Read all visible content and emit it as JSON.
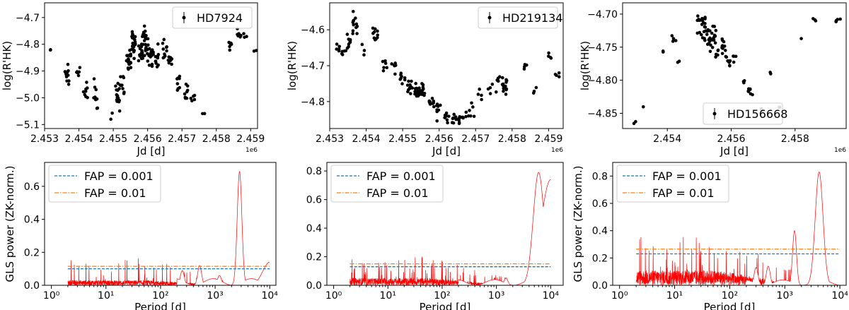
{
  "chart_data": [
    {
      "type": "scatter",
      "panel": "top-left",
      "legend": "HD7924",
      "legend_position": "top-right",
      "xlabel": "Jd [d]",
      "ylabel": "log(R'HK)",
      "x_offset_label": "1e6",
      "xlim": [
        2.453,
        2.4592
      ],
      "ylim": [
        -5.115,
        -4.645
      ],
      "xticks": [
        2.453,
        2.454,
        2.455,
        2.456,
        2.457,
        2.458,
        2.459
      ],
      "xtick_labels": [
        "2.453",
        "2.454",
        "2.455",
        "2.456",
        "2.457",
        "2.458",
        "2.459"
      ],
      "yticks": [
        -5.1,
        -5.0,
        -4.9,
        -4.8,
        -4.7
      ],
      "ytick_labels": [
        "−5.1",
        "−5.0",
        "−4.9",
        "−4.8",
        "−4.7"
      ],
      "clusters": [
        {
          "x": 2.45315,
          "y": -4.82,
          "spread": 0.01,
          "n": 2
        },
        {
          "x": 2.45365,
          "y": -4.91,
          "spread": 0.05,
          "n": 12
        },
        {
          "x": 2.454,
          "y": -4.9,
          "spread": 0.03,
          "n": 6
        },
        {
          "x": 2.4542,
          "y": -4.97,
          "spread": 0.05,
          "n": 8
        },
        {
          "x": 2.4545,
          "y": -4.99,
          "spread": 0.06,
          "n": 10
        },
        {
          "x": 2.4549,
          "y": -5.06,
          "spread": 0.03,
          "n": 2
        },
        {
          "x": 2.45512,
          "y": -4.99,
          "spread": 0.06,
          "n": 14
        },
        {
          "x": 2.45525,
          "y": -4.95,
          "spread": 0.04,
          "n": 10
        },
        {
          "x": 2.45545,
          "y": -4.86,
          "spread": 0.05,
          "n": 18
        },
        {
          "x": 2.4556,
          "y": -4.8,
          "spread": 0.06,
          "n": 22
        },
        {
          "x": 2.4558,
          "y": -4.83,
          "spread": 0.05,
          "n": 18
        },
        {
          "x": 2.45595,
          "y": -4.79,
          "spread": 0.06,
          "n": 22
        },
        {
          "x": 2.4561,
          "y": -4.84,
          "spread": 0.05,
          "n": 14
        },
        {
          "x": 2.4563,
          "y": -4.85,
          "spread": 0.04,
          "n": 10
        },
        {
          "x": 2.4565,
          "y": -4.82,
          "spread": 0.05,
          "n": 10
        },
        {
          "x": 2.45665,
          "y": -4.87,
          "spread": 0.04,
          "n": 8
        },
        {
          "x": 2.4569,
          "y": -4.95,
          "spread": 0.04,
          "n": 8
        },
        {
          "x": 2.4571,
          "y": -4.98,
          "spread": 0.04,
          "n": 8
        },
        {
          "x": 2.4573,
          "y": -5.0,
          "spread": 0.03,
          "n": 5
        },
        {
          "x": 2.4576,
          "y": -5.05,
          "spread": 0.02,
          "n": 2
        },
        {
          "x": 2.4584,
          "y": -4.8,
          "spread": 0.02,
          "n": 8
        },
        {
          "x": 2.45865,
          "y": -4.76,
          "spread": 0.02,
          "n": 6
        },
        {
          "x": 2.45885,
          "y": -4.77,
          "spread": 0.01,
          "n": 3
        },
        {
          "x": 2.4591,
          "y": -4.82,
          "spread": 0.01,
          "n": 2
        }
      ]
    },
    {
      "type": "scatter",
      "panel": "top-middle",
      "legend": "HD219134",
      "legend_position": "top-right",
      "xlabel": "Jd [d]",
      "ylabel": "log(R'HK)",
      "x_offset_label": "1e6",
      "xlim": [
        2.453,
        2.4594
      ],
      "ylim": [
        -4.875,
        -4.525
      ],
      "xticks": [
        2.453,
        2.454,
        2.455,
        2.456,
        2.457,
        2.458,
        2.459
      ],
      "xtick_labels": [
        "2.453",
        "2.454",
        "2.455",
        "2.456",
        "2.457",
        "2.458",
        "2.459"
      ],
      "yticks": [
        -4.8,
        -4.7,
        -4.6
      ],
      "ytick_labels": [
        "−4.8",
        "−4.7",
        "−4.6"
      ],
      "clusters": [
        {
          "x": 2.4532,
          "y": -4.655,
          "spread": 0.01,
          "n": 6
        },
        {
          "x": 2.4534,
          "y": -4.665,
          "spread": 0.01,
          "n": 5
        },
        {
          "x": 2.45355,
          "y": -4.63,
          "spread": 0.02,
          "n": 10
        },
        {
          "x": 2.4537,
          "y": -4.59,
          "spread": 0.04,
          "n": 12
        },
        {
          "x": 2.45395,
          "y": -4.66,
          "spread": 0.01,
          "n": 3
        },
        {
          "x": 2.45425,
          "y": -4.61,
          "spread": 0.02,
          "n": 10
        },
        {
          "x": 2.4545,
          "y": -4.69,
          "spread": 0.02,
          "n": 6
        },
        {
          "x": 2.45475,
          "y": -4.7,
          "spread": 0.02,
          "n": 6
        },
        {
          "x": 2.455,
          "y": -4.73,
          "spread": 0.02,
          "n": 8
        },
        {
          "x": 2.4552,
          "y": -4.76,
          "spread": 0.02,
          "n": 12
        },
        {
          "x": 2.4554,
          "y": -4.77,
          "spread": 0.02,
          "n": 18
        },
        {
          "x": 2.45555,
          "y": -4.77,
          "spread": 0.02,
          "n": 14
        },
        {
          "x": 2.4558,
          "y": -4.8,
          "spread": 0.02,
          "n": 10
        },
        {
          "x": 2.456,
          "y": -4.82,
          "spread": 0.02,
          "n": 8
        },
        {
          "x": 2.4562,
          "y": -4.84,
          "spread": 0.02,
          "n": 8
        },
        {
          "x": 2.4564,
          "y": -4.84,
          "spread": 0.02,
          "n": 8
        },
        {
          "x": 2.4566,
          "y": -4.85,
          "spread": 0.01,
          "n": 8
        },
        {
          "x": 2.4568,
          "y": -4.84,
          "spread": 0.01,
          "n": 4
        },
        {
          "x": 2.4569,
          "y": -4.82,
          "spread": 0.02,
          "n": 4
        },
        {
          "x": 2.4571,
          "y": -4.78,
          "spread": 0.02,
          "n": 4
        },
        {
          "x": 2.4574,
          "y": -4.76,
          "spread": 0.02,
          "n": 4
        },
        {
          "x": 2.4576,
          "y": -4.74,
          "spread": 0.02,
          "n": 6
        },
        {
          "x": 2.4578,
          "y": -4.76,
          "spread": 0.03,
          "n": 14
        },
        {
          "x": 2.4584,
          "y": -4.7,
          "spread": 0.01,
          "n": 4
        },
        {
          "x": 2.4586,
          "y": -4.77,
          "spread": 0.01,
          "n": 3
        },
        {
          "x": 2.45905,
          "y": -4.67,
          "spread": 0.01,
          "n": 4
        },
        {
          "x": 2.45925,
          "y": -4.73,
          "spread": 0.01,
          "n": 4
        }
      ]
    },
    {
      "type": "scatter",
      "panel": "top-right",
      "legend": "HD156668",
      "legend_position": "lower-center",
      "xlabel": "Jd [d]",
      "ylabel": "log(R'HK)",
      "x_offset_label": "1e6",
      "xlim": [
        2.4526,
        2.4596
      ],
      "ylim": [
        -4.873,
        -4.683
      ],
      "xticks": [
        2.454,
        2.456,
        2.458
      ],
      "xtick_labels": [
        "2.454",
        "2.456",
        "2.458"
      ],
      "yticks": [
        -4.85,
        -4.8,
        -4.75,
        -4.7
      ],
      "ytick_labels": [
        "−4.85",
        "−4.80",
        "−4.75",
        "−4.70"
      ],
      "clusters": [
        {
          "x": 2.4529,
          "y": -4.865,
          "spread": 0.002,
          "n": 1
        },
        {
          "x": 2.45305,
          "y": -4.862,
          "spread": 0.002,
          "n": 1
        },
        {
          "x": 2.4532,
          "y": -4.842,
          "spread": 0.002,
          "n": 1
        },
        {
          "x": 2.4538,
          "y": -4.757,
          "spread": 0.003,
          "n": 2
        },
        {
          "x": 2.4542,
          "y": -4.74,
          "spread": 0.01,
          "n": 4
        },
        {
          "x": 2.45435,
          "y": -4.77,
          "spread": 0.008,
          "n": 2
        },
        {
          "x": 2.455,
          "y": -4.72,
          "spread": 0.02,
          "n": 8
        },
        {
          "x": 2.45515,
          "y": -4.72,
          "spread": 0.025,
          "n": 14
        },
        {
          "x": 2.4553,
          "y": -4.74,
          "spread": 0.02,
          "n": 12
        },
        {
          "x": 2.45545,
          "y": -4.73,
          "spread": 0.02,
          "n": 12
        },
        {
          "x": 2.45555,
          "y": -4.76,
          "spread": 0.01,
          "n": 6
        },
        {
          "x": 2.45575,
          "y": -4.75,
          "spread": 0.02,
          "n": 10
        },
        {
          "x": 2.4559,
          "y": -4.77,
          "spread": 0.01,
          "n": 8
        },
        {
          "x": 2.4561,
          "y": -4.77,
          "spread": 0.008,
          "n": 4
        },
        {
          "x": 2.45645,
          "y": -4.8,
          "spread": 0.008,
          "n": 3
        },
        {
          "x": 2.4566,
          "y": -4.82,
          "spread": 0.012,
          "n": 8
        },
        {
          "x": 2.4569,
          "y": -4.845,
          "spread": 0.005,
          "n": 2
        },
        {
          "x": 2.4572,
          "y": -4.79,
          "spread": 0.005,
          "n": 2
        },
        {
          "x": 2.45755,
          "y": -4.84,
          "spread": 0.003,
          "n": 2
        },
        {
          "x": 2.4582,
          "y": -4.737,
          "spread": 0.003,
          "n": 1
        },
        {
          "x": 2.4586,
          "y": -4.708,
          "spread": 0.003,
          "n": 3
        },
        {
          "x": 2.45935,
          "y": -4.71,
          "spread": 0.005,
          "n": 4
        }
      ]
    },
    {
      "type": "line",
      "panel": "bottom-left",
      "xscale": "log",
      "xlim": [
        0.75,
        13000
      ],
      "ylim": [
        0,
        0.745
      ],
      "xlabel": "Period [d]",
      "ylabel": "GLS power (ZK-norm.)",
      "xticks": [
        1,
        10,
        100,
        1000,
        10000
      ],
      "xtick_labels": [
        "10⁰",
        "10¹",
        "10²",
        "10³",
        "10⁴"
      ],
      "yticks": [
        0,
        0.2,
        0.4,
        0.6
      ],
      "ytick_labels": [
        "0.0",
        "0.2",
        "0.4",
        "0.6"
      ],
      "period_min": 2,
      "period_max": 10000,
      "noise_level": 0.03,
      "spike_max": 0.17,
      "peaks": [
        {
          "period": 2800,
          "power": 0.69,
          "width": 0.06
        },
        {
          "period": 520,
          "power": 0.12,
          "width": 0.05
        },
        {
          "period": 250,
          "power": 0.09,
          "width": 0.05
        },
        {
          "period": 1200,
          "power": 0.06,
          "width": 0.05
        },
        {
          "period": 10000,
          "power": 0.14,
          "width": 0.18
        }
      ],
      "fap_lines": [
        {
          "label": "FAP = 0.001",
          "level": 0.1,
          "color": "#1f77b4",
          "style": "dashed"
        },
        {
          "label": "FAP = 0.01",
          "level": 0.115,
          "color": "#ff7f0e",
          "style": "dashdot"
        }
      ],
      "series_color": "#ff0000",
      "legend_position": "top-left"
    },
    {
      "type": "line",
      "panel": "bottom-middle",
      "xscale": "log",
      "xlim": [
        0.75,
        17000
      ],
      "ylim": [
        0,
        0.86
      ],
      "xlabel": "Period [d]",
      "ylabel": "",
      "xticks": [
        1,
        10,
        100,
        1000,
        10000
      ],
      "xtick_labels": [
        "10⁰",
        "10¹",
        "10²",
        "10³",
        "10⁴"
      ],
      "yticks": [
        0,
        0.2,
        0.4,
        0.6,
        0.8
      ],
      "ytick_labels": [
        "0.0",
        "0.2",
        "0.4",
        "0.6",
        "0.8"
      ],
      "period_min": 2,
      "period_max": 10000,
      "noise_level": 0.05,
      "spike_max": 0.2,
      "peaks": [
        {
          "period": 6000,
          "power": 0.79,
          "width": 0.14
        },
        {
          "period": 10000,
          "power": 0.74,
          "width": 0.25
        },
        {
          "period": 1500,
          "power": 0.05,
          "width": 0.05
        }
      ],
      "fap_lines": [
        {
          "label": "FAP = 0.001",
          "level": 0.13,
          "color": "#1f77b4",
          "style": "dashed"
        },
        {
          "label": "FAP = 0.01",
          "level": 0.15,
          "color": "#ff7f0e",
          "style": "dashdot"
        }
      ],
      "series_color": "#ff0000",
      "legend_position": "top-left"
    },
    {
      "type": "line",
      "panel": "bottom-right",
      "xscale": "log",
      "xlim": [
        0.75,
        13000
      ],
      "ylim": [
        0,
        0.9
      ],
      "xlabel": "Period [d]",
      "ylabel": "GLS power (ZK-norm.)",
      "xticks": [
        1,
        10,
        100,
        1000,
        10000
      ],
      "xtick_labels": [
        "10⁰",
        "10¹",
        "10²",
        "10³",
        "10⁴"
      ],
      "yticks": [
        0,
        0.2,
        0.4,
        0.6,
        0.8
      ],
      "ytick_labels": [
        "0.0",
        "0.2",
        "0.4",
        "0.6",
        "0.8"
      ],
      "period_min": 2,
      "period_max": 10000,
      "noise_level": 0.11,
      "spike_max": 0.36,
      "peaks": [
        {
          "period": 4200,
          "power": 0.83,
          "width": 0.1
        },
        {
          "period": 1500,
          "power": 0.4,
          "width": 0.05
        },
        {
          "period": 500,
          "power": 0.14,
          "width": 0.05
        },
        {
          "period": 300,
          "power": 0.13,
          "width": 0.05
        }
      ],
      "fap_lines": [
        {
          "label": "FAP = 0.001",
          "level": 0.23,
          "color": "#1f77b4",
          "style": "dashed"
        },
        {
          "label": "FAP = 0.01",
          "level": 0.265,
          "color": "#ff7f0e",
          "style": "dashdot"
        }
      ],
      "series_color": "#ff0000",
      "legend_position": "top-left"
    }
  ]
}
